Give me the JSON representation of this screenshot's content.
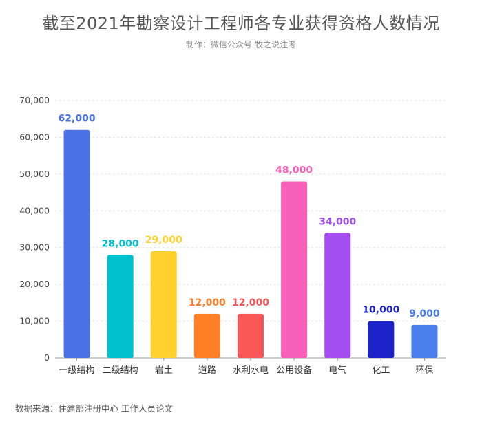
{
  "header": {
    "title": "截至2021年勘察设计工程师各专业获得资格人数情况",
    "subtitle": "制作：微信公众号-牧之说注考"
  },
  "footer": {
    "source": "数据来源：住建部注册中心 工作人员论文"
  },
  "chart_data": {
    "type": "bar",
    "title": "截至2021年勘察设计工程师各专业获得资格人数情况",
    "xlabel": "",
    "ylabel": "",
    "ylim": [
      0,
      70000
    ],
    "yticks": [
      0,
      10000,
      20000,
      30000,
      40000,
      50000,
      60000,
      70000
    ],
    "ytick_labels": [
      "0",
      "10,000",
      "20,000",
      "30,000",
      "40,000",
      "50,000",
      "60,000",
      "70,000"
    ],
    "grid": true,
    "legend": "none",
    "categories": [
      "一级结构",
      "二级结构",
      "岩土",
      "道路",
      "水利水电",
      "公用设备",
      "电气",
      "化工",
      "环保"
    ],
    "values": [
      62000,
      28000,
      29000,
      12000,
      12000,
      48000,
      34000,
      10000,
      9000
    ],
    "value_labels": [
      "62,000",
      "28,000",
      "29,000",
      "12,000",
      "12,000",
      "48,000",
      "34,000",
      "10,000",
      "9,000"
    ],
    "colors": [
      "#4A72E6",
      "#00C2CF",
      "#FFD02E",
      "#FF7F27",
      "#F95757",
      "#F75FB8",
      "#A44DF0",
      "#1B22C8",
      "#4C7FEE"
    ]
  }
}
